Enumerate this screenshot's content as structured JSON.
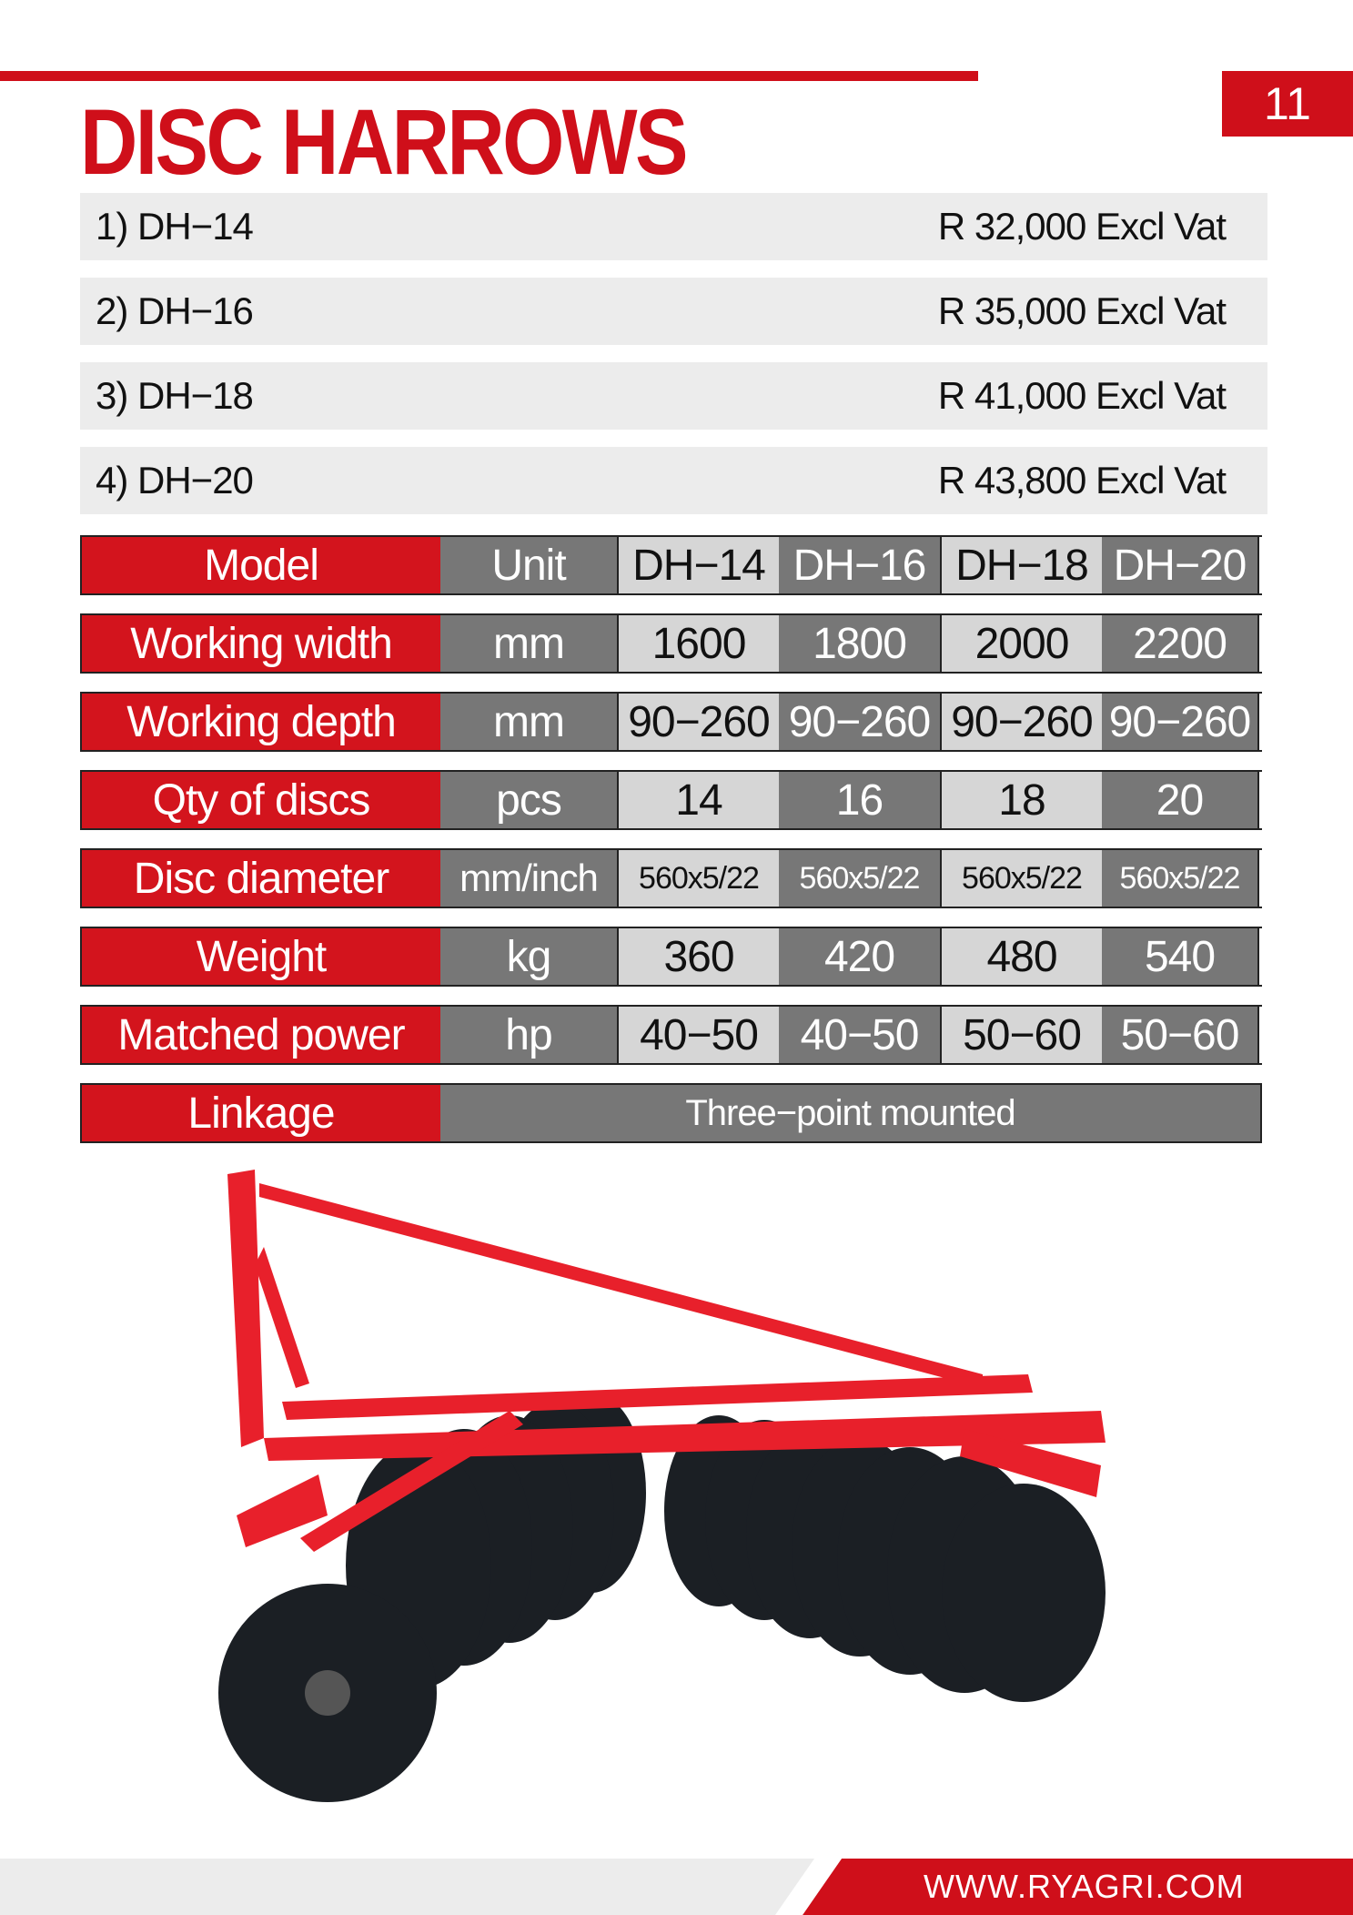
{
  "page_number": "11",
  "title": "DISC HARROWS",
  "prices": [
    {
      "item": "1) DH−14",
      "price": "R 32,000 Excl Vat"
    },
    {
      "item": "2) DH−16",
      "price": "R 35,000 Excl Vat"
    },
    {
      "item": "3) DH−18",
      "price": "R 41,000 Excl Vat"
    },
    {
      "item": "4) DH−20",
      "price": "R 43,800 Excl Vat"
    }
  ],
  "specs": {
    "header": {
      "label": "Model",
      "unit": "Unit",
      "values": [
        "DH−14",
        "DH−16",
        "DH−18",
        "DH−20"
      ]
    },
    "rows": [
      {
        "label": "Working width",
        "unit": "mm",
        "values": [
          "1600",
          "1800",
          "2000",
          "2200"
        ]
      },
      {
        "label": "Working depth",
        "unit": "mm",
        "values": [
          "90−260",
          "90−260",
          "90−260",
          "90−260"
        ]
      },
      {
        "label": "Qty of discs",
        "unit": "pcs",
        "values": [
          "14",
          "16",
          "18",
          "20"
        ]
      },
      {
        "label": "Disc diameter",
        "unit": "mm/inch",
        "values": [
          "560x5/22",
          "560x5/22",
          "560x5/22",
          "560x5/22"
        ]
      },
      {
        "label": "Weight",
        "unit": "kg",
        "values": [
          "360",
          "420",
          "480",
          "540"
        ]
      },
      {
        "label": "Matched power",
        "unit": "hp",
        "values": [
          "40−50",
          "40−50",
          "50−60",
          "50−60"
        ]
      }
    ],
    "linkage": {
      "label": "Linkage",
      "value": "Three−point mounted"
    }
  },
  "footer": {
    "url": "WWW.RYAGRI.COM"
  },
  "colors": {
    "brand_red": "#cf0f1a",
    "cell_gray": "#777777",
    "cell_light": "#d6d6d6"
  }
}
